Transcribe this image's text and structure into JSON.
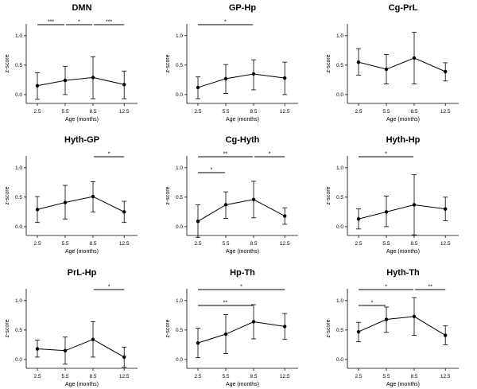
{
  "chart_data": [
    {
      "type": "line",
      "title": "DMN",
      "xlabel": "Age (months)",
      "ylabel": "z-score",
      "categories": [
        "2.5",
        "5.5",
        "8.5",
        "12.5"
      ],
      "values": [
        0.15,
        0.24,
        0.29,
        0.17
      ],
      "err_low": [
        -0.08,
        0.0,
        -0.07,
        -0.07
      ],
      "err_high": [
        0.37,
        0.48,
        0.64,
        0.4
      ],
      "ylim": [
        -0.15,
        1.2
      ],
      "yticks": [
        "0.0",
        "0.5",
        "1.0"
      ],
      "sig": [
        {
          "from": 0,
          "to": 1,
          "label": "***"
        },
        {
          "from": 1,
          "to": 2,
          "label": "*"
        },
        {
          "from": 2,
          "to": 3,
          "label": "***"
        }
      ]
    },
    {
      "type": "line",
      "title": "GP-Hp",
      "xlabel": "Age (months)",
      "ylabel": "z-score",
      "categories": [
        "2.5",
        "5.5",
        "8.5",
        "12.5"
      ],
      "values": [
        0.12,
        0.27,
        0.35,
        0.28
      ],
      "err_low": [
        -0.07,
        0.02,
        0.08,
        0.0
      ],
      "err_high": [
        0.3,
        0.51,
        0.59,
        0.55
      ],
      "ylim": [
        -0.15,
        1.2
      ],
      "yticks": [
        "0.0",
        "0.5",
        "1.0"
      ],
      "sig": [
        {
          "from": 0,
          "to": 2,
          "label": "*"
        }
      ]
    },
    {
      "type": "line",
      "title": "Cg-PrL",
      "xlabel": "Age (months)",
      "ylabel": "z-score",
      "categories": [
        "2.5",
        "5.5",
        "8.5",
        "12.5"
      ],
      "values": [
        0.55,
        0.43,
        0.62,
        0.39
      ],
      "err_low": [
        0.33,
        0.18,
        0.18,
        0.23
      ],
      "err_high": [
        0.78,
        0.68,
        1.06,
        0.54
      ],
      "ylim": [
        -0.15,
        1.2
      ],
      "yticks": [
        "0.0",
        "0.5",
        "1.0"
      ],
      "sig": []
    },
    {
      "type": "line",
      "title": "Hyth-GP",
      "xlabel": "Age (months)",
      "ylabel": "z-score",
      "categories": [
        "2.5",
        "5.5",
        "8.5",
        "12.5"
      ],
      "values": [
        0.29,
        0.41,
        0.51,
        0.25
      ],
      "err_low": [
        0.07,
        0.13,
        0.25,
        0.07
      ],
      "err_high": [
        0.51,
        0.7,
        0.76,
        0.43
      ],
      "ylim": [
        -0.15,
        1.2
      ],
      "yticks": [
        "0.0",
        "0.5",
        "1.0"
      ],
      "sig": [
        {
          "from": 2,
          "to": 3,
          "label": "*"
        }
      ]
    },
    {
      "type": "line",
      "title": "Cg-Hyth",
      "xlabel": "Age (months)",
      "ylabel": "z-score",
      "categories": [
        "2.5",
        "5.5",
        "8.5",
        "12.5"
      ],
      "values": [
        0.09,
        0.37,
        0.46,
        0.18
      ],
      "err_low": [
        -0.18,
        0.14,
        0.15,
        0.04
      ],
      "err_high": [
        0.37,
        0.59,
        0.77,
        0.32
      ],
      "ylim": [
        -0.15,
        1.2
      ],
      "yticks": [
        "0.0",
        "0.5",
        "1.0"
      ],
      "sig": [
        {
          "from": 0,
          "to": 1,
          "label": "*"
        },
        {
          "from": 0,
          "to": 2,
          "label": "**"
        },
        {
          "from": 2,
          "to": 3,
          "label": "*"
        }
      ]
    },
    {
      "type": "line",
      "title": "Hyth-Hp",
      "xlabel": "Age (months)",
      "ylabel": "z-score",
      "categories": [
        "2.5",
        "5.5",
        "8.5",
        "12.5"
      ],
      "values": [
        0.13,
        0.25,
        0.37,
        0.3
      ],
      "err_low": [
        -0.04,
        0.0,
        -0.14,
        0.1
      ],
      "err_high": [
        0.3,
        0.52,
        0.88,
        0.5
      ],
      "ylim": [
        -0.15,
        1.2
      ],
      "yticks": [
        "0.0",
        "0.5",
        "1.0"
      ],
      "sig": [
        {
          "from": 0,
          "to": 2,
          "label": "*"
        }
      ]
    },
    {
      "type": "line",
      "title": "PrL-Hp",
      "xlabel": "Age (months)",
      "ylabel": "z-score",
      "categories": [
        "2.5",
        "5.5",
        "8.5",
        "12.5"
      ],
      "values": [
        0.18,
        0.15,
        0.34,
        0.04
      ],
      "err_low": [
        0.04,
        -0.08,
        0.04,
        -0.13
      ],
      "err_high": [
        0.33,
        0.38,
        0.64,
        0.21
      ],
      "ylim": [
        -0.15,
        1.2
      ],
      "yticks": [
        "0.0",
        "0.5",
        "1.0"
      ],
      "sig": [
        {
          "from": 2,
          "to": 3,
          "label": "*"
        }
      ]
    },
    {
      "type": "line",
      "title": "Hp-Th",
      "xlabel": "Age (months)",
      "ylabel": "z-score",
      "categories": [
        "2.5",
        "5.5",
        "8.5",
        "12.5"
      ],
      "values": [
        0.28,
        0.43,
        0.64,
        0.56
      ],
      "err_low": [
        0.03,
        0.1,
        0.35,
        0.34
      ],
      "err_high": [
        0.53,
        0.76,
        0.93,
        0.78
      ],
      "ylim": [
        -0.15,
        1.2
      ],
      "yticks": [
        "0.0",
        "0.5",
        "1.0"
      ],
      "sig": [
        {
          "from": 0,
          "to": 3,
          "label": "*"
        },
        {
          "from": 0,
          "to": 2,
          "label": "**"
        }
      ]
    },
    {
      "type": "line",
      "title": "Hyth-Th",
      "xlabel": "Age (months)",
      "ylabel": "z-score",
      "categories": [
        "2.5",
        "5.5",
        "8.5",
        "12.5"
      ],
      "values": [
        0.47,
        0.68,
        0.73,
        0.41
      ],
      "err_low": [
        0.3,
        0.46,
        0.41,
        0.25
      ],
      "err_high": [
        0.63,
        0.89,
        1.05,
        0.57
      ],
      "ylim": [
        -0.15,
        1.2
      ],
      "yticks": [
        "0.0",
        "0.5",
        "1.0"
      ],
      "sig": [
        {
          "from": 0,
          "to": 1,
          "label": "*"
        },
        {
          "from": 0,
          "to": 2,
          "label": "*"
        },
        {
          "from": 2,
          "to": 3,
          "label": "**"
        }
      ]
    }
  ]
}
